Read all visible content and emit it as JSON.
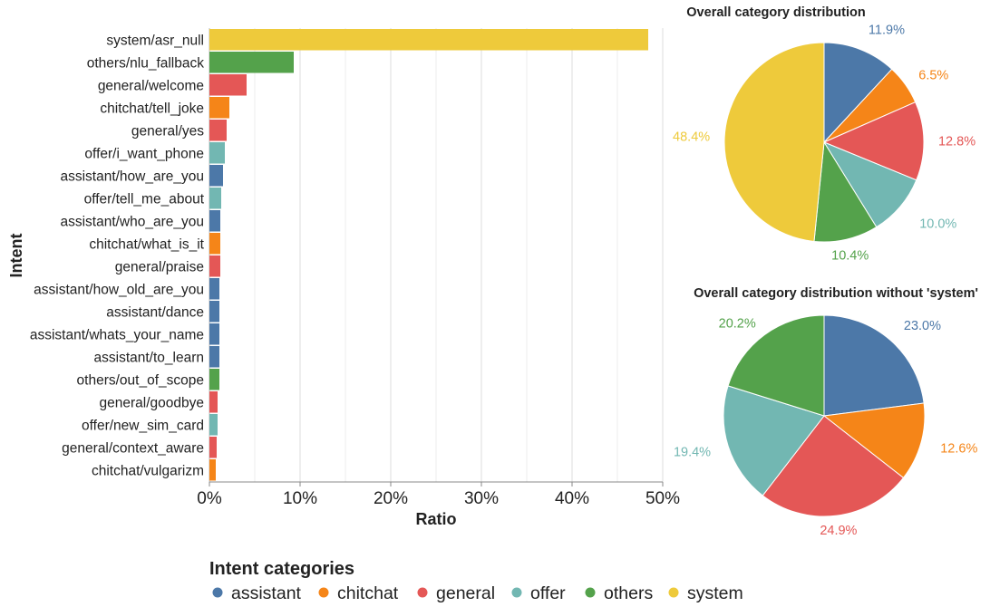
{
  "chart_data": [
    {
      "type": "bar",
      "orientation": "horizontal",
      "title": "",
      "xlabel": "Ratio",
      "ylabel": "Intent",
      "xlim": [
        0,
        50
      ],
      "xticks": [
        0,
        10,
        20,
        30,
        40,
        50
      ],
      "xtick_labels": [
        "0%",
        "10%",
        "20%",
        "30%",
        "40%",
        "50%"
      ],
      "grid": "vertical",
      "categories": [
        "system/asr_null",
        "others/nlu_fallback",
        "general/welcome",
        "chitchat/tell_joke",
        "general/yes",
        "offer/i_want_phone",
        "assistant/how_are_you",
        "offer/tell_me_about",
        "assistant/who_are_you",
        "chitchat/what_is_it",
        "general/praise",
        "assistant/how_old_are_you",
        "assistant/dance",
        "assistant/whats_your_name",
        "assistant/to_learn",
        "others/out_of_scope",
        "general/goodbye",
        "offer/new_sim_card",
        "general/context_aware",
        "chitchat/vulgarizm"
      ],
      "values": [
        48.4,
        9.3,
        4.1,
        2.2,
        1.9,
        1.7,
        1.5,
        1.3,
        1.2,
        1.2,
        1.2,
        1.1,
        1.1,
        1.1,
        1.1,
        1.1,
        0.9,
        0.9,
        0.8,
        0.7
      ],
      "bar_categories": [
        "system",
        "others",
        "general",
        "chitchat",
        "general",
        "offer",
        "assistant",
        "offer",
        "assistant",
        "chitchat",
        "general",
        "assistant",
        "assistant",
        "assistant",
        "assistant",
        "others",
        "general",
        "offer",
        "general",
        "chitchat"
      ]
    },
    {
      "type": "pie",
      "title": "Overall category distribution",
      "labels": [
        "assistant",
        "chitchat",
        "general",
        "offer",
        "others",
        "system"
      ],
      "values": [
        11.9,
        6.5,
        12.8,
        10.0,
        10.4,
        48.4
      ],
      "value_labels": [
        "11.9%",
        "6.5%",
        "12.8%",
        "10.0%",
        "10.4%",
        "48.4%"
      ]
    },
    {
      "type": "pie",
      "title": "Overall category distribution without 'system'",
      "labels": [
        "assistant",
        "chitchat",
        "general",
        "offer",
        "others"
      ],
      "values": [
        23.0,
        12.6,
        24.9,
        19.4,
        20.2
      ],
      "value_labels": [
        "23.0%",
        "12.6%",
        "24.9%",
        "19.4%",
        "20.2%"
      ]
    }
  ],
  "legend": {
    "title": "Intent categories",
    "items": [
      "assistant",
      "chitchat",
      "general",
      "offer",
      "others",
      "system"
    ]
  },
  "colors": {
    "assistant": "#4c78a8",
    "chitchat": "#f58518",
    "general": "#e45756",
    "offer": "#72b7b2",
    "others": "#54a24b",
    "system": "#eeca3b"
  }
}
